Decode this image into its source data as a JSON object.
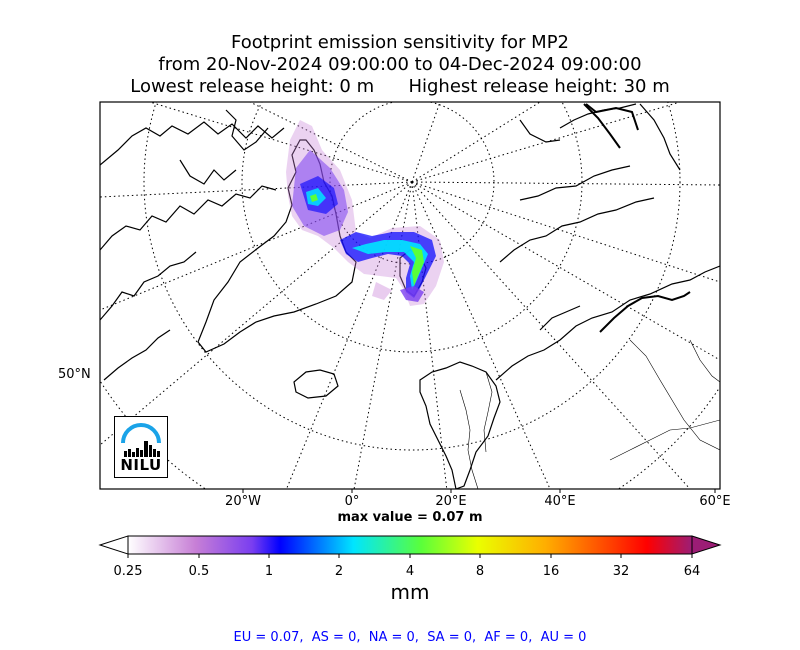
{
  "title": {
    "line1": "Footprint emission sensitivity for MP2",
    "line2": "from 20-Nov-2024 09:00:00 to 04-Dec-2024 09:00:00",
    "line3": "Lowest release height: 0 m      Highest release height: 30 m"
  },
  "axes": {
    "lat_label": "50°N",
    "lon_labels": [
      "20°W",
      "0°",
      "20°E",
      "40°E",
      "60°E"
    ]
  },
  "max_value": "max value = 0.07 m",
  "colorbar": {
    "ticks": [
      "0.25",
      "0.5",
      "1",
      "2",
      "4",
      "8",
      "16",
      "32",
      "64"
    ],
    "unit": "mm",
    "colors": [
      "#ffffff",
      "#c77fd6",
      "#7a3ef0",
      "#0000ff",
      "#00e5ff",
      "#5aff3a",
      "#eaff00",
      "#ffae00",
      "#ff3c00",
      "#ff0000",
      "#9c1d75"
    ]
  },
  "logo": {
    "text": "NILU"
  },
  "stats": "EU = 0.07,  AS = 0,  NA = 0,  SA = 0,  AF = 0,  AU = 0"
}
